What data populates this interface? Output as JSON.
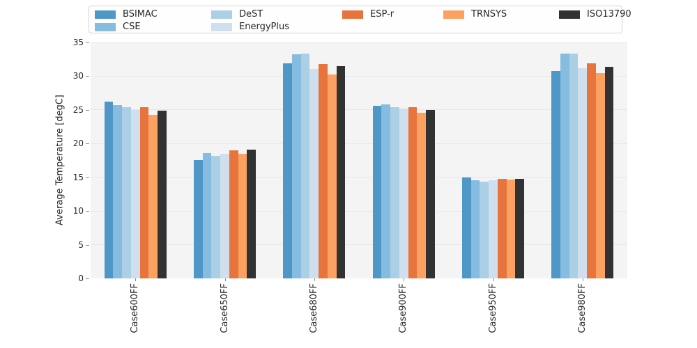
{
  "chart_data": {
    "type": "bar",
    "title": "",
    "xlabel": "",
    "ylabel": "Average Temperature [degC]",
    "ylim": [
      0,
      35
    ],
    "yticks": [
      0,
      5,
      10,
      15,
      20,
      25,
      30,
      35
    ],
    "grid": "horizontal",
    "legend_position": "top",
    "plot_background": "#f4f4f4",
    "categories": [
      "Case600FF",
      "Case650FF",
      "Case680FF",
      "Case900FF",
      "Case950FF",
      "Case980FF"
    ],
    "series": [
      {
        "name": "BSIMAC",
        "color": "#4f97c7",
        "values": [
          26.2,
          17.6,
          31.9,
          25.6,
          15.0,
          30.8
        ]
      },
      {
        "name": "CSE",
        "color": "#85bcdf",
        "values": [
          25.7,
          18.6,
          33.2,
          25.8,
          14.6,
          33.3
        ]
      },
      {
        "name": "DeST",
        "color": "#abcfe4",
        "values": [
          25.4,
          18.2,
          33.3,
          25.4,
          14.4,
          33.3
        ]
      },
      {
        "name": "EnergyPlus",
        "color": "#cfdfee",
        "values": [
          25.0,
          18.5,
          31.1,
          25.2,
          14.6,
          31.2
        ]
      },
      {
        "name": "ESP-r",
        "color": "#e8743d",
        "values": [
          25.4,
          19.0,
          31.8,
          25.4,
          14.8,
          31.9
        ]
      },
      {
        "name": "TRNSYS",
        "color": "#fba263",
        "values": [
          24.3,
          18.5,
          30.3,
          24.6,
          14.7,
          30.5
        ]
      },
      {
        "name": "ISO13790",
        "color": "#323232",
        "values": [
          24.9,
          19.1,
          31.5,
          25.0,
          14.8,
          31.4
        ]
      }
    ],
    "legend_columns": [
      [
        "BSIMAC",
        "CSE"
      ],
      [
        "DeST",
        "EnergyPlus"
      ],
      [
        "ESP-r"
      ],
      [
        "TRNSYS"
      ],
      [
        "ISO13790"
      ]
    ]
  }
}
